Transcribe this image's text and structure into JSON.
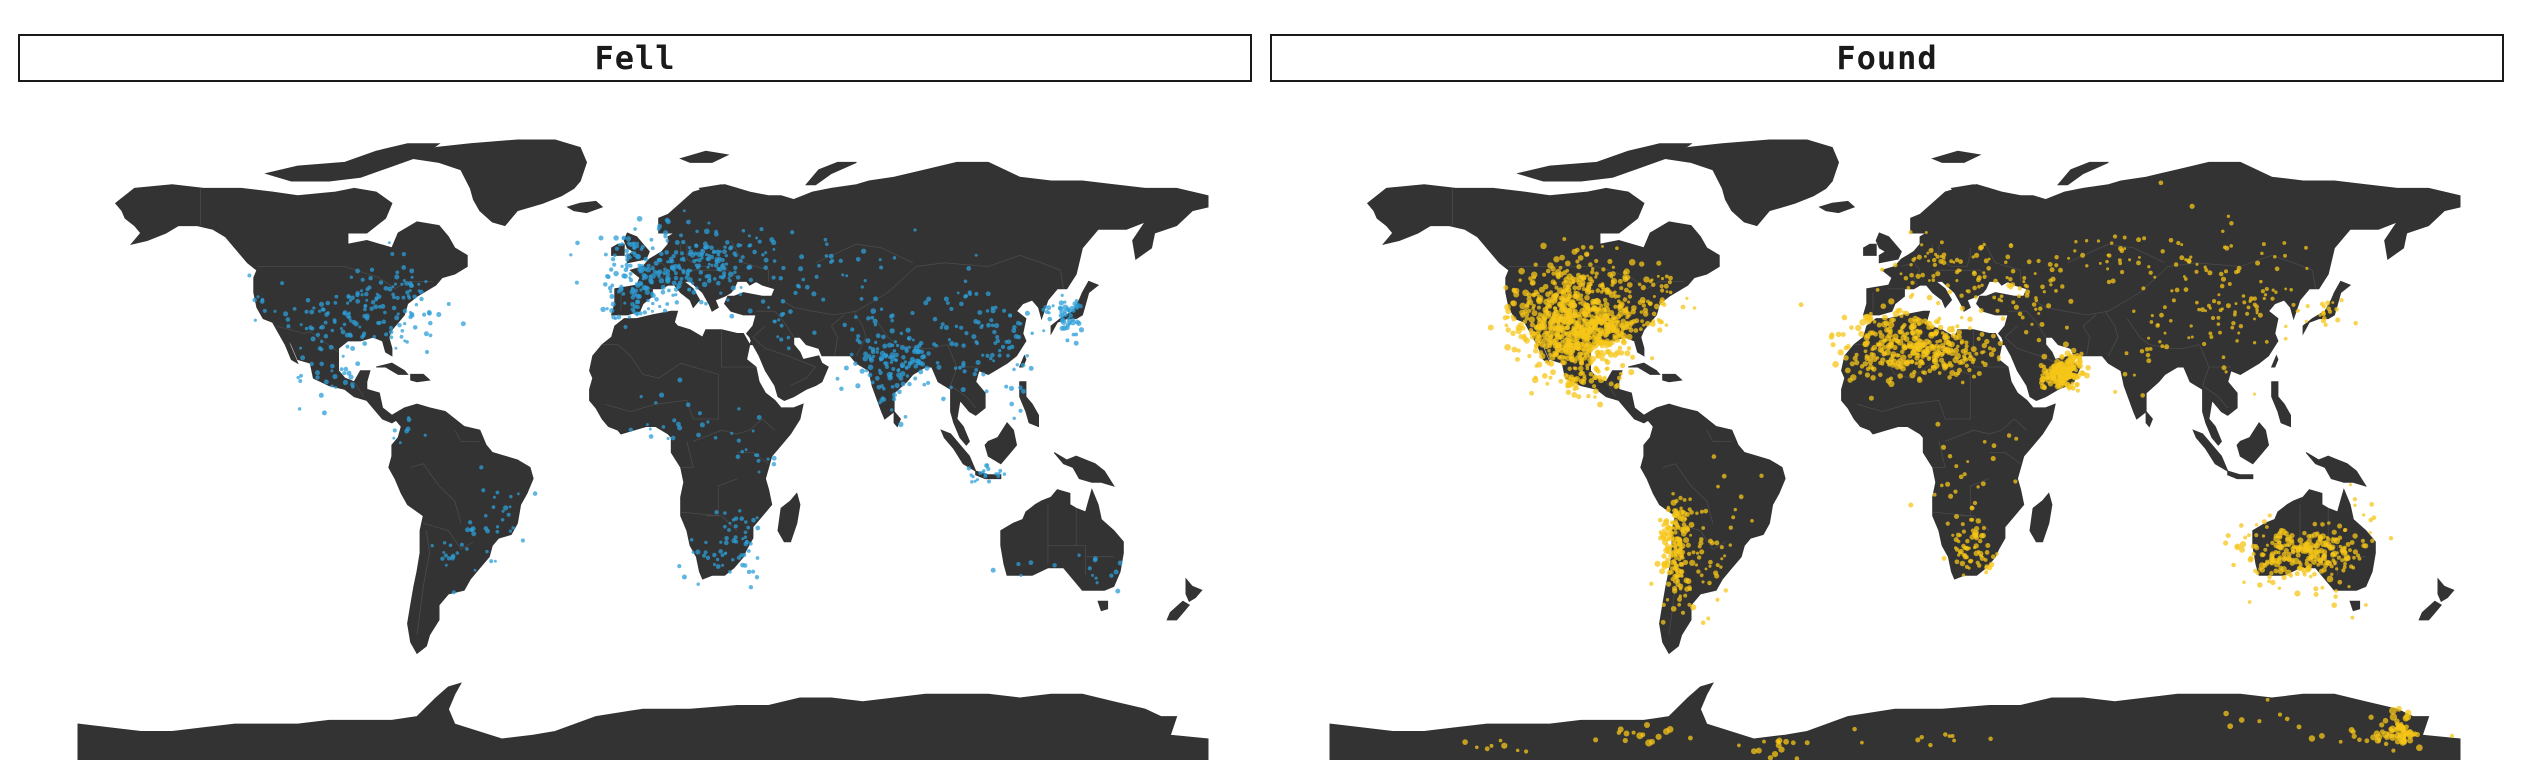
{
  "facets": [
    {
      "id": "fell",
      "label": "Fell",
      "point_color": "#2E9FD8"
    },
    {
      "id": "found",
      "label": "Found",
      "point_color": "#F5C518"
    }
  ],
  "colors": {
    "land": "#333333",
    "borders": "#4a4a4a",
    "ocean": "#ffffff",
    "strip_border": "#1a1a1a"
  },
  "map_data": {
    "type": "scatter-map",
    "projection": "robinson",
    "grid": false,
    "lon_range": [
      -180,
      180
    ],
    "lat_range": [
      -90,
      90
    ]
  }
}
